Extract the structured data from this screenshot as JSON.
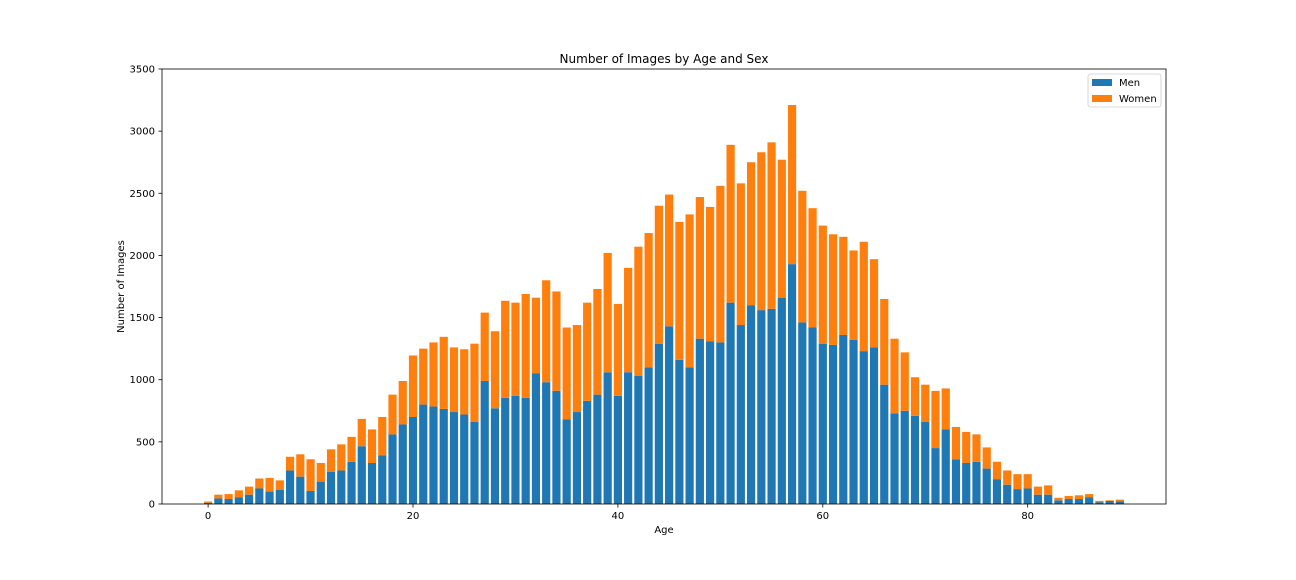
{
  "chart_data": {
    "type": "bar",
    "stacked": true,
    "title": "Number of Images by Age and Sex",
    "xlabel": "Age",
    "ylabel": "Number of Images",
    "xlim": [
      -4.5,
      93.5
    ],
    "ylim": [
      0,
      3500
    ],
    "xticks": [
      0,
      20,
      40,
      60,
      80
    ],
    "yticks": [
      0,
      500,
      1000,
      1500,
      2000,
      2500,
      3000,
      3500
    ],
    "grid": false,
    "legend": "top-right",
    "x": [
      0,
      1,
      2,
      3,
      4,
      5,
      6,
      7,
      8,
      9,
      10,
      11,
      12,
      13,
      14,
      15,
      16,
      17,
      18,
      19,
      20,
      21,
      22,
      23,
      24,
      25,
      26,
      27,
      28,
      29,
      30,
      31,
      32,
      33,
      34,
      35,
      36,
      37,
      38,
      39,
      40,
      41,
      42,
      43,
      44,
      45,
      46,
      47,
      48,
      49,
      50,
      51,
      52,
      53,
      54,
      55,
      56,
      57,
      58,
      59,
      60,
      61,
      62,
      63,
      64,
      65,
      66,
      67,
      68,
      69,
      70,
      71,
      72,
      73,
      74,
      75,
      76,
      77,
      78,
      79,
      80,
      81,
      82,
      83,
      84,
      85,
      86,
      87,
      88,
      89
    ],
    "series": [
      {
        "name": "Men",
        "color": "#1f77b4",
        "values": [
          10,
          45,
          40,
          55,
          75,
          125,
          100,
          115,
          270,
          220,
          105,
          180,
          260,
          270,
          340,
          465,
          330,
          390,
          560,
          640,
          700,
          800,
          785,
          765,
          740,
          720,
          660,
          990,
          770,
          855,
          870,
          855,
          1050,
          980,
          910,
          680,
          740,
          830,
          880,
          1060,
          870,
          1060,
          1030,
          1100,
          1290,
          1430,
          1160,
          1100,
          1330,
          1310,
          1300,
          1620,
          1440,
          1600,
          1560,
          1570,
          1660,
          1930,
          1460,
          1420,
          1290,
          1280,
          1360,
          1320,
          1230,
          1260,
          960,
          730,
          750,
          710,
          660,
          450,
          600,
          360,
          330,
          340,
          285,
          200,
          155,
          120,
          125,
          75,
          75,
          30,
          40,
          40,
          55,
          15,
          25,
          20
        ]
      },
      {
        "name": "Women",
        "color": "#ff7f0e",
        "values": [
          10,
          30,
          40,
          55,
          65,
          80,
          110,
          75,
          110,
          180,
          255,
          150,
          180,
          210,
          200,
          220,
          270,
          310,
          320,
          350,
          495,
          450,
          515,
          580,
          520,
          525,
          630,
          550,
          620,
          780,
          750,
          835,
          610,
          820,
          800,
          740,
          700,
          790,
          850,
          960,
          740,
          840,
          1040,
          1080,
          1110,
          1060,
          1110,
          1230,
          1140,
          1080,
          1260,
          1270,
          1140,
          1150,
          1270,
          1340,
          1110,
          1280,
          1060,
          960,
          950,
          890,
          790,
          720,
          880,
          710,
          690,
          600,
          470,
          310,
          300,
          460,
          330,
          260,
          250,
          220,
          170,
          140,
          115,
          120,
          115,
          65,
          75,
          20,
          25,
          30,
          25,
          10,
          5,
          15
        ]
      }
    ]
  }
}
